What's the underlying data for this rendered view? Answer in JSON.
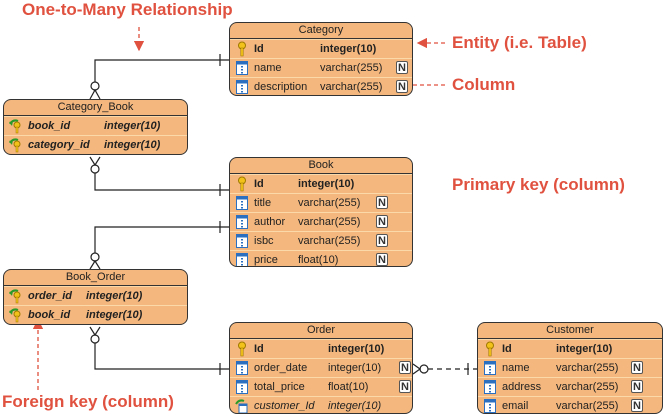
{
  "annotations": {
    "one_to_many": "One-to-Many Relationship",
    "entity": "Entity (i.e. Table)",
    "column": "Column",
    "primary_key": "Primary key (column)",
    "foreign_key": "Foreign key (column)"
  },
  "colors": {
    "entity_fill": "#f4b77d",
    "annotation": "#e0523f"
  },
  "entities": [
    {
      "name": "Category",
      "columns": [
        {
          "name": "Id",
          "type": "integer(10)",
          "kind": "pk",
          "nullable": false
        },
        {
          "name": "name",
          "type": "varchar(255)",
          "kind": "col",
          "nullable": true
        },
        {
          "name": "description",
          "type": "varchar(255)",
          "kind": "col",
          "nullable": true
        }
      ]
    },
    {
      "name": "Category_Book",
      "columns": [
        {
          "name": "book_id",
          "type": "integer(10)",
          "kind": "fk",
          "nullable": false
        },
        {
          "name": "category_id",
          "type": "integer(10)",
          "kind": "fk",
          "nullable": false
        }
      ]
    },
    {
      "name": "Book",
      "columns": [
        {
          "name": "Id",
          "type": "integer(10)",
          "kind": "pk",
          "nullable": false
        },
        {
          "name": "title",
          "type": "varchar(255)",
          "kind": "col",
          "nullable": true
        },
        {
          "name": "author",
          "type": "varchar(255)",
          "kind": "col",
          "nullable": true
        },
        {
          "name": "isbc",
          "type": "varchar(255)",
          "kind": "col",
          "nullable": true
        },
        {
          "name": "price",
          "type": "float(10)",
          "kind": "col",
          "nullable": true
        }
      ]
    },
    {
      "name": "Book_Order",
      "columns": [
        {
          "name": "order_id",
          "type": "integer(10)",
          "kind": "fk",
          "nullable": false
        },
        {
          "name": "book_id",
          "type": "integer(10)",
          "kind": "fk",
          "nullable": false
        }
      ]
    },
    {
      "name": "Order",
      "columns": [
        {
          "name": "Id",
          "type": "integer(10)",
          "kind": "pk",
          "nullable": false
        },
        {
          "name": "order_date",
          "type": "integer(10)",
          "kind": "col",
          "nullable": true
        },
        {
          "name": "total_price",
          "type": "float(10)",
          "kind": "col",
          "nullable": true
        },
        {
          "name": "customer_Id",
          "type": "integer(10)",
          "kind": "fkc",
          "nullable": false
        }
      ]
    },
    {
      "name": "Customer",
      "columns": [
        {
          "name": "Id",
          "type": "integer(10)",
          "kind": "pk",
          "nullable": false
        },
        {
          "name": "name",
          "type": "varchar(255)",
          "kind": "col",
          "nullable": true
        },
        {
          "name": "address",
          "type": "varchar(255)",
          "kind": "col",
          "nullable": true
        },
        {
          "name": "email",
          "type": "varchar(255)",
          "kind": "col",
          "nullable": true
        }
      ]
    }
  ],
  "null_marker": "N"
}
